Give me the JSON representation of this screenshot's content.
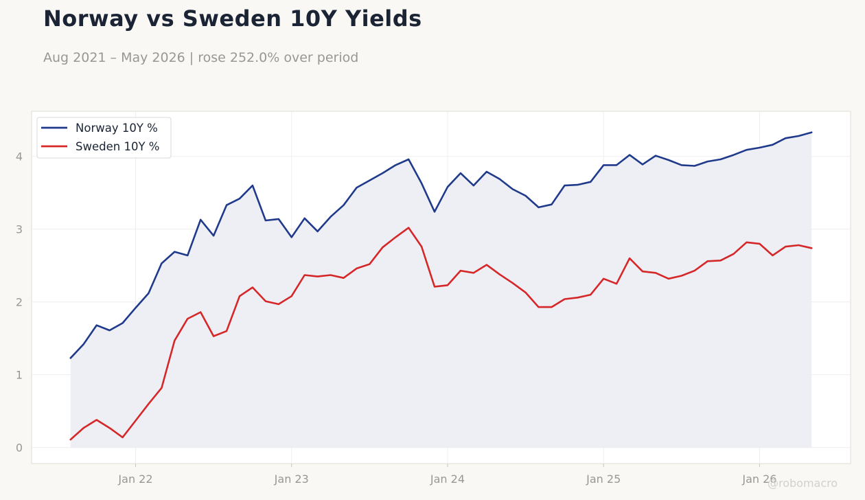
{
  "title": "Norway vs Sweden 10Y Yields",
  "subtitle": "Aug 2021 – May 2026 | rose 252.0% over period",
  "watermark": "@robomacro",
  "colors": {
    "background": "#f9f8f5",
    "plot_background": "#ffffff",
    "norway": "#1f3a8a",
    "sweden": "#d62728",
    "fill": "#eceef4",
    "grid": "#ebebeb",
    "tick_text": "#999791"
  },
  "chart_data": {
    "type": "line",
    "title": "Norway vs Sweden 10Y Yields",
    "subtitle": "Aug 2021 – May 2026 | rose 252.0% over period",
    "xlabel": "",
    "ylabel": "",
    "x": [
      "2021-08",
      "2021-09",
      "2021-10",
      "2021-11",
      "2021-12",
      "2022-01",
      "2022-02",
      "2022-03",
      "2022-04",
      "2022-05",
      "2022-06",
      "2022-07",
      "2022-08",
      "2022-09",
      "2022-10",
      "2022-11",
      "2022-12",
      "2023-01",
      "2023-02",
      "2023-03",
      "2023-04",
      "2023-05",
      "2023-06",
      "2023-07",
      "2023-08",
      "2023-09",
      "2023-10",
      "2023-11",
      "2023-12",
      "2024-01",
      "2024-02",
      "2024-03",
      "2024-04",
      "2024-05",
      "2024-06",
      "2024-07",
      "2024-08",
      "2024-09",
      "2024-10",
      "2024-11",
      "2024-12",
      "2025-01",
      "2025-02",
      "2025-03",
      "2025-04",
      "2025-05",
      "2025-06",
      "2025-07",
      "2025-08",
      "2025-09",
      "2025-10",
      "2025-11",
      "2025-12",
      "2026-01",
      "2026-02",
      "2026-03",
      "2026-04",
      "2026-05"
    ],
    "series": [
      {
        "name": "Norway 10Y %",
        "color": "#1f3a8a",
        "values": [
          1.23,
          1.42,
          1.68,
          1.61,
          1.71,
          1.92,
          2.12,
          2.53,
          2.69,
          2.64,
          3.13,
          2.91,
          3.33,
          3.42,
          3.6,
          3.12,
          3.14,
          2.89,
          3.15,
          2.97,
          3.17,
          3.33,
          3.57,
          3.67,
          3.77,
          3.88,
          3.96,
          3.63,
          3.24,
          3.58,
          3.77,
          3.6,
          3.79,
          3.69,
          3.55,
          3.46,
          3.3,
          3.34,
          3.6,
          3.61,
          3.65,
          3.88,
          3.88,
          4.02,
          3.89,
          4.01,
          3.95,
          3.88,
          3.87,
          3.93,
          3.96,
          4.02,
          4.09,
          4.12,
          4.16,
          4.25,
          4.28,
          4.33
        ]
      },
      {
        "name": "Sweden 10Y %",
        "color": "#d62728",
        "values": [
          0.11,
          0.27,
          0.38,
          0.27,
          0.14,
          0.37,
          0.6,
          0.82,
          1.47,
          1.77,
          1.86,
          1.53,
          1.6,
          2.08,
          2.2,
          2.01,
          1.97,
          2.08,
          2.37,
          2.35,
          2.37,
          2.33,
          2.46,
          2.52,
          2.75,
          2.89,
          3.02,
          2.76,
          2.21,
          2.23,
          2.43,
          2.4,
          2.51,
          2.38,
          2.26,
          2.13,
          1.93,
          1.93,
          2.04,
          2.06,
          2.1,
          2.32,
          2.25,
          2.6,
          2.42,
          2.4,
          2.32,
          2.36,
          2.43,
          2.56,
          2.57,
          2.66,
          2.82,
          2.8,
          2.64,
          2.76,
          2.78,
          2.74
        ]
      }
    ],
    "fill_series": "Norway 10Y %",
    "x_ticks": [
      {
        "x": "2022-01",
        "label": "Jan 22"
      },
      {
        "x": "2023-01",
        "label": "Jan 23"
      },
      {
        "x": "2024-01",
        "label": "Jan 24"
      },
      {
        "x": "2025-01",
        "label": "Jan 25"
      },
      {
        "x": "2026-01",
        "label": "Jan 26"
      }
    ],
    "y_ticks": [
      0,
      1,
      2,
      3,
      4
    ],
    "ylim": [
      -0.22,
      4.62
    ],
    "xlim": [
      "2021-05",
      "2026-08"
    ],
    "grid": true,
    "legend": "top-left"
  }
}
